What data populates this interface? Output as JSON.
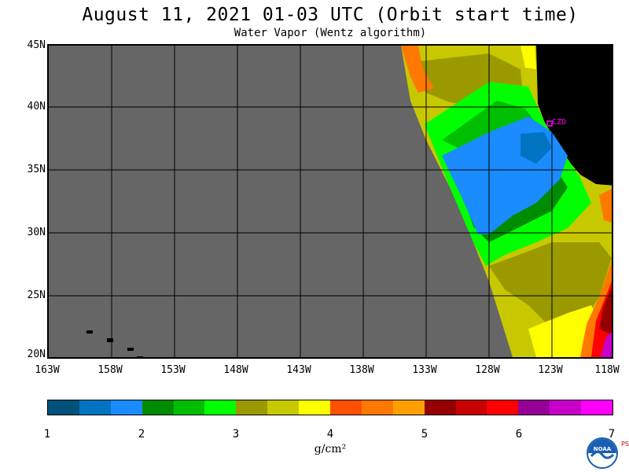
{
  "title": "August 11, 2021  01-03 UTC  (Orbit start time)",
  "subtitle": "Water Vapor (Wentz algorithm)",
  "map": {
    "lat_labels": [
      "45N",
      "40N",
      "35N",
      "30N",
      "25N",
      "20N"
    ],
    "lon_labels": [
      "163W",
      "158W",
      "153W",
      "148W",
      "143W",
      "138W",
      "133W",
      "128W",
      "123W",
      "118W"
    ],
    "station_label": "CZD",
    "colors": {
      "no_data": "#666666",
      "land": "#000000",
      "station": "#ff00ff"
    }
  },
  "colorbar": {
    "ticks": [
      "1",
      "2",
      "3",
      "4",
      "5",
      "6",
      "7"
    ],
    "unit": "g/cm²",
    "colors": [
      "#00527a",
      "#0074c0",
      "#1a8cff",
      "#008c00",
      "#00bf00",
      "#00ff00",
      "#9a9a00",
      "#c8c800",
      "#ffff00",
      "#ff5000",
      "#ff7800",
      "#ffa000",
      "#960000",
      "#c80000",
      "#ff0000",
      "#960096",
      "#c800c8",
      "#ff00ff"
    ]
  },
  "logo": {
    "name": "NOAA",
    "psl": "PSL"
  }
}
